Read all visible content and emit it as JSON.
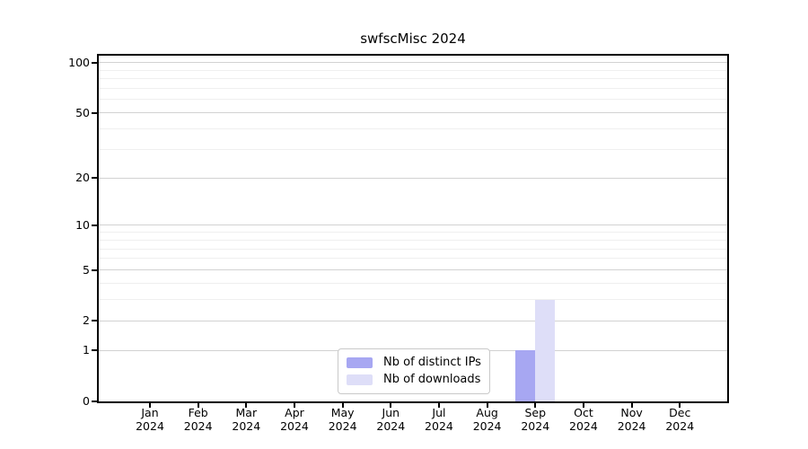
{
  "figure": {
    "background": "#ffffff"
  },
  "chart_data": {
    "type": "bar",
    "title": "swfscMisc 2024",
    "categories": [
      "Jan",
      "Feb",
      "Mar",
      "Apr",
      "May",
      "Jun",
      "Jul",
      "Aug",
      "Sep",
      "Oct",
      "Nov",
      "Dec"
    ],
    "category_year": "2024",
    "series": [
      {
        "name": "Nb of distinct IPs",
        "color": "#a7a7f2",
        "values": [
          0,
          0,
          0,
          0,
          0,
          0,
          0,
          0,
          1,
          0,
          0,
          0
        ]
      },
      {
        "name": "Nb of downloads",
        "color": "#dedef8",
        "values": [
          0,
          0,
          0,
          0,
          0,
          0,
          0,
          0,
          3,
          0,
          0,
          0
        ]
      }
    ],
    "xlabel": "",
    "ylabel": "",
    "yscale": "log10(1+y)",
    "ylim": [
      0,
      110
    ],
    "yticks": [
      0,
      1,
      2,
      5,
      10,
      20,
      50,
      100
    ],
    "grid_values": [
      1,
      2,
      3,
      4,
      5,
      6,
      7,
      8,
      9,
      10,
      20,
      30,
      40,
      50,
      60,
      70,
      80,
      90,
      100
    ],
    "grid": "horizontal",
    "legend_position": "inside-bottom-center",
    "colors": {
      "frame": "#000000",
      "grid_major": "#d2d2d2",
      "grid_minor": "#efefef",
      "text": "#000000",
      "legend_border": "#c9c9c9",
      "background": "#ffffff"
    }
  }
}
